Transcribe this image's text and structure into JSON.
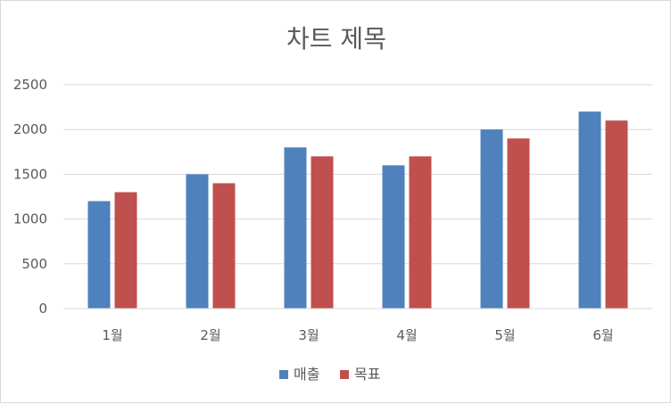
{
  "chart_data": {
    "type": "bar",
    "title": "차트 제목",
    "xlabel": "",
    "ylabel": "",
    "categories": [
      "1월",
      "2월",
      "3월",
      "4월",
      "5월",
      "6월"
    ],
    "series": [
      {
        "name": "매출",
        "values": [
          1200,
          1500,
          1800,
          1600,
          2000,
          2200
        ],
        "color": "#4f81bd"
      },
      {
        "name": "목표",
        "values": [
          1300,
          1400,
          1700,
          1700,
          1900,
          2100
        ],
        "color": "#c0504d"
      }
    ],
    "ylim": [
      0,
      2500
    ],
    "yticks": [
      0,
      500,
      1000,
      1500,
      2000,
      2500
    ],
    "grid": true,
    "legend_position": "bottom"
  }
}
